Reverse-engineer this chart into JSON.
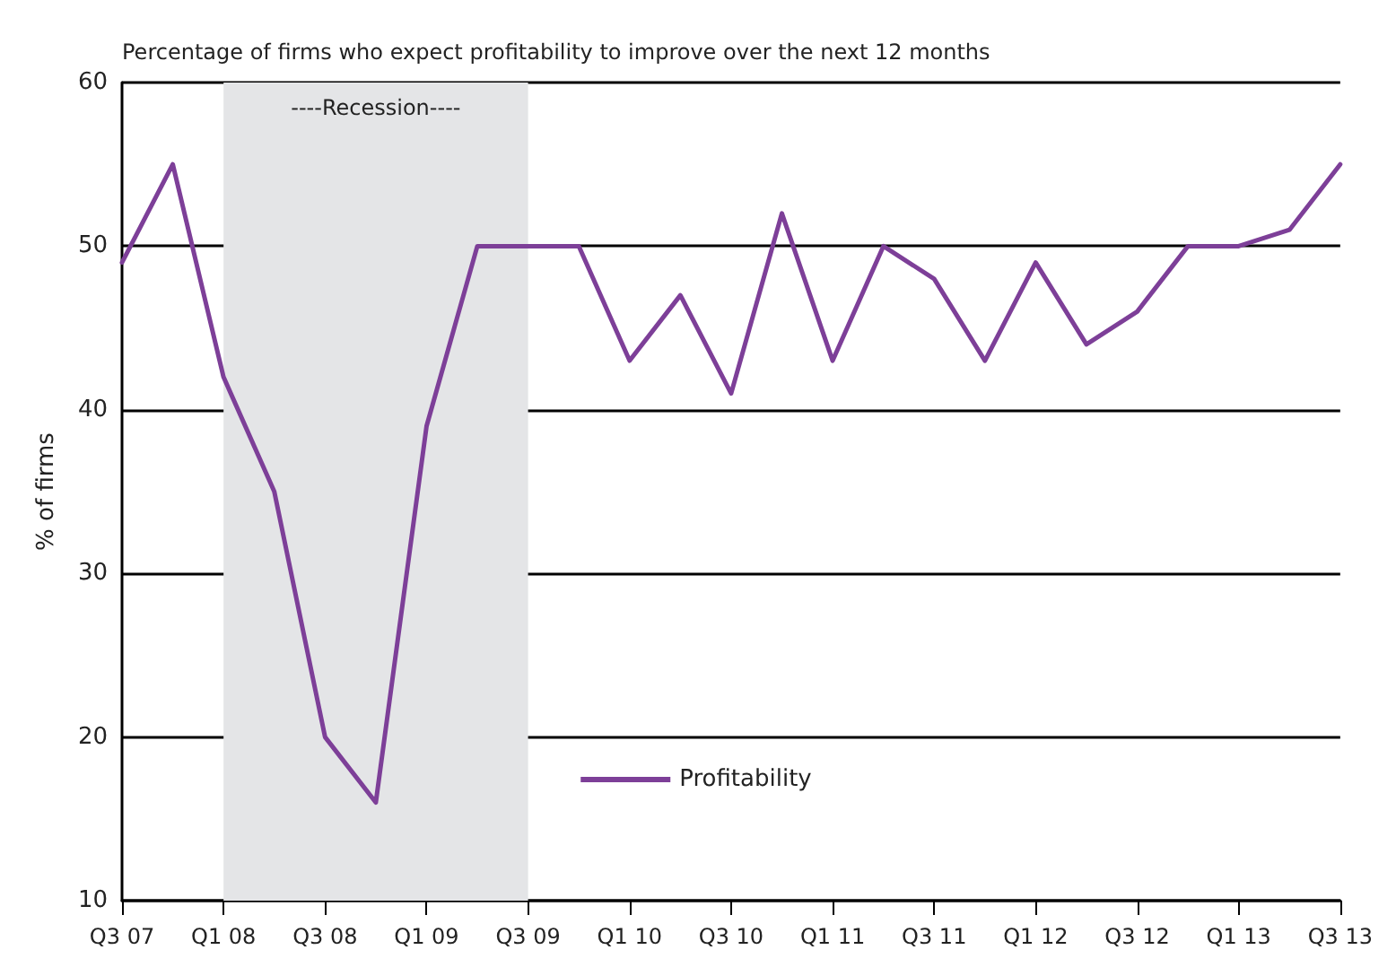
{
  "chart_data": {
    "type": "line",
    "title": "Percentage of firms who expect profitability to improve over the next 12 months",
    "ylabel": "% of firms",
    "categories": [
      "Q3 07",
      null,
      "Q1 08",
      null,
      "Q3 08",
      null,
      "Q1 09",
      null,
      "Q3 09",
      null,
      "Q1 10",
      null,
      "Q3 10",
      null,
      "Q1 11",
      null,
      "Q3 11",
      null,
      "Q1 12",
      null,
      "Q3 12",
      null,
      "Q1 13",
      null,
      "Q3 13"
    ],
    "series": [
      {
        "name": "Profitability",
        "color": "#7d3f98",
        "values": [
          49,
          55,
          42,
          35,
          20,
          16,
          39,
          50,
          50,
          50,
          43,
          47,
          41,
          52,
          43,
          50,
          48,
          43,
          49,
          44,
          46,
          50,
          50,
          51,
          55
        ]
      }
    ],
    "ylim": [
      10,
      60
    ],
    "yticks": [
      10,
      20,
      30,
      40,
      50,
      60
    ],
    "grid": "y",
    "legend": "bottom",
    "marker": "none",
    "line_style": "solid",
    "bands": [
      {
        "axis": "x",
        "from": "Q1 08",
        "to": "Q3 09",
        "label": "----Recession----",
        "color": "#e4e5e7"
      }
    ]
  }
}
